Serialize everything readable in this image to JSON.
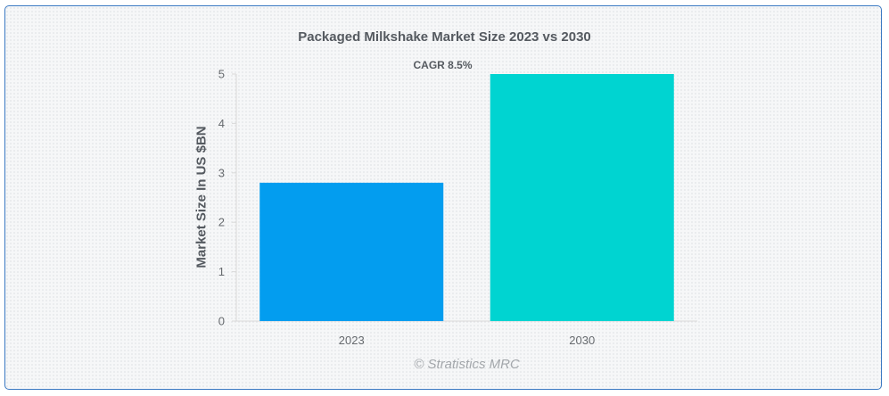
{
  "chart_data": {
    "type": "bar",
    "title": "Packaged Milkshake Market Size 2023 vs 2030",
    "ylabel": "Market Size In US $BN",
    "xlabel": "",
    "categories": [
      "2023",
      "2030"
    ],
    "values": [
      2.8,
      5.0
    ],
    "colors": [
      "#039def",
      "#00d4d1"
    ],
    "ylim": [
      0,
      5
    ],
    "yticks": [
      "0",
      "1",
      "2",
      "3",
      "4",
      "5"
    ],
    "grid": false,
    "annotation": "CAGR 8.5%"
  },
  "watermark": "© Stratistics MRC",
  "colors": {
    "border": "#3a78c2",
    "text": "#555a60",
    "axis": "#d9d9d9"
  }
}
